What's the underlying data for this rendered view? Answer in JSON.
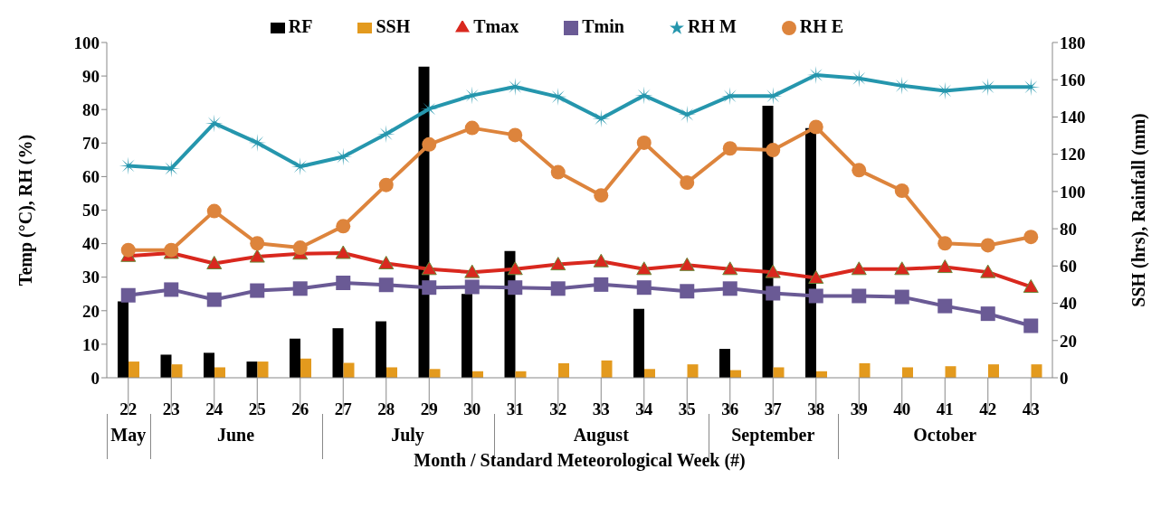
{
  "chart_data": {
    "type": "line",
    "xlabel": "Month / Standard Meteorological Week (#)",
    "ylabel": "Temp (°C), RH (%)",
    "y2label": "SSH (hrs), Rainfall (mm)",
    "categories": [
      "22",
      "23",
      "24",
      "25",
      "26",
      "27",
      "28",
      "29",
      "30",
      "31",
      "32",
      "33",
      "34",
      "35",
      "36",
      "37",
      "38",
      "39",
      "40",
      "41",
      "42",
      "43"
    ],
    "series": [
      {
        "name": "RF",
        "type": "bar",
        "axis": "y2",
        "color": "#000000",
        "values": [
          41,
          12.4,
          13.4,
          8.7,
          21,
          26.6,
          30.3,
          167,
          45,
          68,
          0,
          0,
          37,
          0,
          15.5,
          146,
          134,
          0,
          0,
          0,
          0,
          0
        ]
      },
      {
        "name": "SSH",
        "type": "bar",
        "axis": "y2",
        "color": "#e39a1e",
        "values": [
          8.7,
          7.2,
          5.6,
          8.7,
          10.3,
          8,
          5.6,
          4.7,
          3.5,
          3.5,
          7.8,
          9.3,
          4.7,
          7.2,
          4.1,
          5.6,
          3.5,
          7.8,
          5.6,
          6.2,
          7.2,
          7.2
        ]
      },
      {
        "name": "Tmax",
        "color": "#d9281e",
        "marker": "triangle",
        "values": [
          36.3,
          37.2,
          34.1,
          36.1,
          37,
          37.2,
          34.1,
          32.4,
          31.5,
          32.4,
          33.8,
          34.7,
          32.4,
          33.6,
          32.4,
          31.5,
          29.8,
          32.4,
          32.4,
          33,
          31.5,
          27.1
        ]
      },
      {
        "name": "Tmin",
        "color": "#6a5a95",
        "marker": "square",
        "values": [
          24.6,
          26.3,
          23.3,
          26,
          26.6,
          28.3,
          27.7,
          26.9,
          27.1,
          26.9,
          26.6,
          27.8,
          26.9,
          25.8,
          26.6,
          25.2,
          24.4,
          24.4,
          24.1,
          21.4,
          19.1,
          15.5
        ]
      },
      {
        "name": "RH M",
        "color": "#2596ad",
        "marker": "star",
        "values": [
          63.2,
          62.4,
          75.9,
          70.1,
          63,
          65.9,
          72.7,
          80.2,
          84.2,
          86.8,
          83.8,
          77.3,
          84.2,
          78.5,
          84,
          84,
          90.3,
          89.3,
          87.1,
          85.6,
          86.7,
          86.7
        ]
      },
      {
        "name": "RH E",
        "color": "#dd843c",
        "marker": "circle",
        "values": [
          38.1,
          38.1,
          49.7,
          40.1,
          38.8,
          45.2,
          57.5,
          69.6,
          74.5,
          72.4,
          61.3,
          54.4,
          70.1,
          58.2,
          68.4,
          67.9,
          74.8,
          61.9,
          55.8,
          40.1,
          39.5,
          42
        ]
      }
    ],
    "ylim": [
      0,
      100
    ],
    "yticks": [
      0,
      10,
      20,
      30,
      40,
      50,
      60,
      70,
      80,
      90,
      100
    ],
    "y2lim": [
      0,
      180
    ],
    "y2ticks": [
      0,
      20,
      40,
      60,
      80,
      100,
      120,
      140,
      160,
      180
    ],
    "annotations": [
      "May",
      "June",
      "July",
      "August",
      "September",
      "October"
    ],
    "grid": false,
    "legend": "top",
    "line_style": "solid"
  }
}
